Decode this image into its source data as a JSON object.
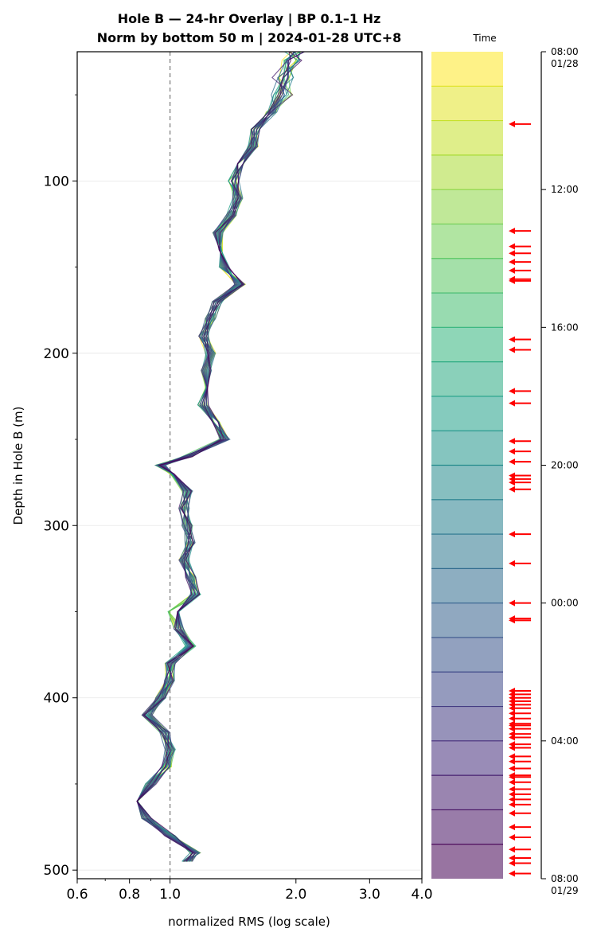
{
  "chart_data": {
    "type": "line",
    "title": "Hole B — 24-hr Overlay  |  BP 0.1–1 Hz",
    "subtitle": "Norm by bottom 50 m  |  2024-01-28 UTC+8",
    "xlabel": "normalized RMS  (log scale)",
    "ylabel": "Depth in Hole B (m)",
    "x_scale": "log",
    "xlim": [
      0.6,
      4.0
    ],
    "ylim": [
      505,
      25
    ],
    "x_ticks": [
      "0.6",
      "0.8",
      "1.0",
      "2.0",
      "3.0",
      "4.0"
    ],
    "x_tick_values": [
      0.6,
      0.8,
      1.0,
      2.0,
      3.0,
      4.0
    ],
    "y_ticks": [
      "100",
      "200",
      "300",
      "400",
      "500"
    ],
    "y_tick_values": [
      100,
      200,
      300,
      400,
      500
    ],
    "reference_line_x": 1.0,
    "grid": "horizontal",
    "colormap": "viridis",
    "series_count": 24,
    "profile_depths": [
      25,
      30,
      40,
      50,
      60,
      70,
      80,
      90,
      100,
      110,
      120,
      130,
      140,
      150,
      160,
      170,
      180,
      190,
      200,
      210,
      220,
      230,
      240,
      250,
      260,
      265,
      270,
      280,
      290,
      300,
      310,
      320,
      330,
      340,
      350,
      360,
      370,
      380,
      390,
      400,
      410,
      420,
      430,
      440,
      450,
      460,
      470,
      480,
      490,
      495
    ],
    "profile_rms": [
      2.0,
      1.95,
      1.88,
      1.85,
      1.75,
      1.6,
      1.58,
      1.48,
      1.42,
      1.45,
      1.4,
      1.3,
      1.34,
      1.35,
      1.47,
      1.3,
      1.25,
      1.2,
      1.25,
      1.22,
      1.25,
      1.2,
      1.28,
      1.35,
      1.1,
      0.95,
      1.0,
      1.1,
      1.08,
      1.1,
      1.12,
      1.08,
      1.12,
      1.15,
      1.02,
      1.05,
      1.12,
      1.0,
      1.0,
      0.95,
      0.88,
      0.97,
      1.0,
      0.98,
      0.9,
      0.85,
      0.88,
      1.0,
      1.15,
      1.1
    ],
    "colorbar": {
      "label": "Time",
      "ticks": [
        {
          "label": "08:00",
          "sub": "01/28",
          "hour": 0
        },
        {
          "label": "12:00",
          "sub": "",
          "hour": 4
        },
        {
          "label": "16:00",
          "sub": "",
          "hour": 8
        },
        {
          "label": "20:00",
          "sub": "",
          "hour": 12
        },
        {
          "label": "00:00",
          "sub": "",
          "hour": 16
        },
        {
          "label": "04:00",
          "sub": "",
          "hour": 20
        },
        {
          "label": "08:00",
          "sub": "01/29",
          "hour": 24
        }
      ]
    },
    "event_arrow_hours": [
      2.1,
      5.2,
      5.65,
      5.85,
      6.1,
      6.35,
      6.6,
      6.65,
      8.35,
      8.65,
      9.85,
      10.2,
      11.3,
      11.6,
      11.9,
      12.3,
      12.4,
      12.5,
      12.7,
      14.0,
      14.85,
      16.0,
      16.45,
      16.5,
      18.55,
      18.65,
      18.75,
      18.85,
      18.95,
      19.05,
      19.2,
      19.35,
      19.5,
      19.55,
      19.65,
      19.8,
      19.9,
      20.1,
      20.2,
      20.45,
      20.6,
      20.8,
      21.0,
      21.05,
      21.2,
      21.4,
      21.55,
      21.7,
      21.85,
      22.1,
      22.5,
      22.8,
      23.15,
      23.4,
      23.55,
      23.85
    ]
  }
}
